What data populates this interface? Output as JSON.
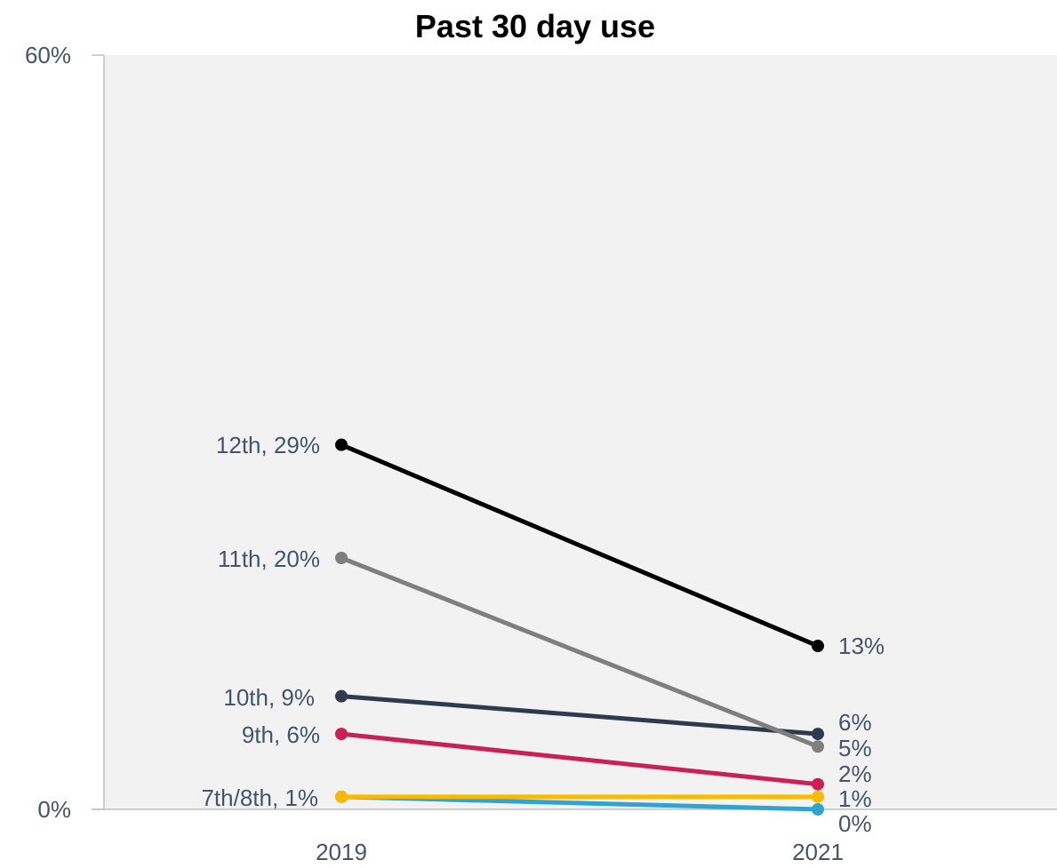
{
  "chart_data": {
    "type": "line",
    "title": "Past 30 day use",
    "categories": [
      "2019",
      "2021"
    ],
    "ylim": [
      0,
      60
    ],
    "y_ticks": [
      "0%",
      "60%"
    ],
    "grid": false,
    "legend": "none",
    "plot_background": "#f2f2f2",
    "series": [
      {
        "name": "12th",
        "values": [
          29,
          13
        ],
        "color": "#000000",
        "start_label": "12th, 29%",
        "end_label": "13%"
      },
      {
        "name": "11th",
        "values": [
          20,
          5
        ],
        "color": "#7f7f7f",
        "start_label": "11th, 20%",
        "end_label": "5%"
      },
      {
        "name": "10th",
        "values": [
          9,
          6
        ],
        "color": "#2e3b4e",
        "start_label": "10th, 9%",
        "end_label": "6%"
      },
      {
        "name": "9th",
        "values": [
          6,
          2
        ],
        "color": "#cc1f55",
        "start_label": "9th, 6%",
        "end_label": "2%"
      },
      {
        "name": "7th/8th",
        "values": [
          1,
          0
        ],
        "color": "#2fa3d1",
        "start_label": "7th/8th, 1%",
        "end_label": "0%"
      },
      {
        "name": "",
        "values": [
          1,
          1
        ],
        "color": "#ffb800",
        "start_label": "",
        "end_label": "1%"
      }
    ]
  }
}
